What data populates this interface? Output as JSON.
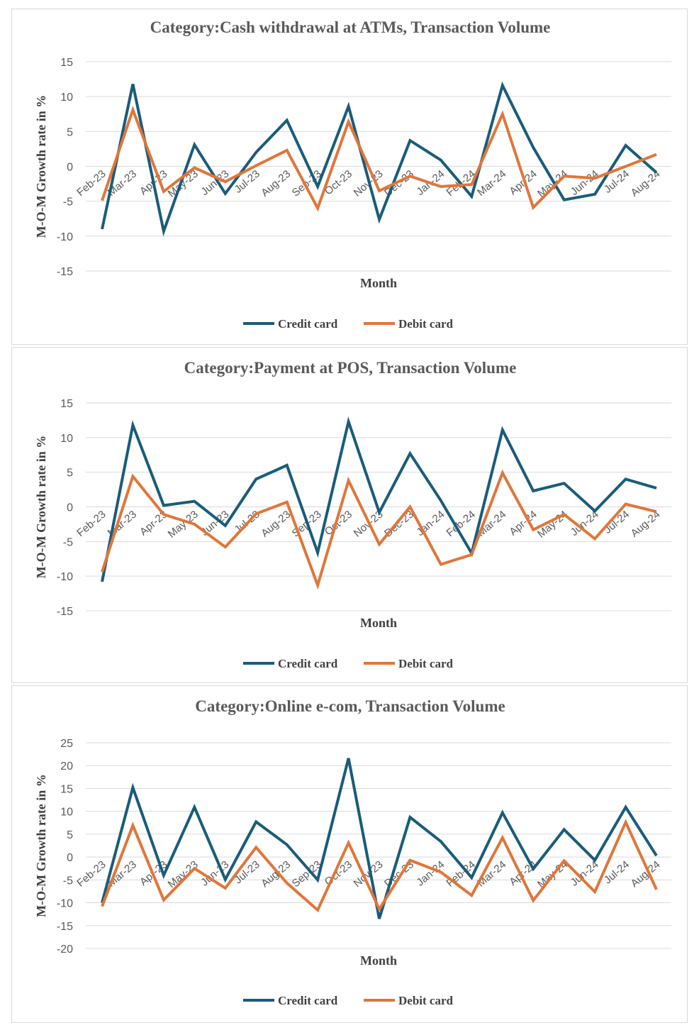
{
  "colors": {
    "credit": "#1a5c7a",
    "debit": "#e0763a"
  },
  "chart_data": [
    {
      "type": "line",
      "title": "Category:Cash withdrawal at ATMs, Transaction Volume",
      "xlabel": "Month",
      "ylabel": "M-O-M Growth rate in %",
      "ylim": [
        -15,
        15
      ],
      "yticks": [
        15,
        10,
        5,
        0,
        -5,
        -10,
        -15
      ],
      "grid": true,
      "legend": "bottom",
      "categories": [
        "Feb-23",
        "Mar-23",
        "Apr-23",
        "May-23",
        "Jun-23",
        "Jul-23",
        "Aug-23",
        "Sep-23",
        "Oct-23",
        "Nov-23",
        "Dec-23",
        "Jan-24",
        "Feb-24",
        "Mar-24",
        "Apr-24",
        "May-24",
        "Jun-24",
        "Jul-24",
        "Aug-24"
      ],
      "series": [
        {
          "name": "Credit card",
          "values": [
            -9.0,
            11.8,
            -9.3,
            3.1,
            -3.9,
            2.0,
            6.6,
            -2.9,
            8.6,
            -7.6,
            3.7,
            0.9,
            -4.3,
            11.6,
            2.7,
            -4.8,
            -4.0,
            3.0,
            -0.9
          ]
        },
        {
          "name": "Debit card",
          "values": [
            -4.9,
            8.1,
            -3.6,
            -0.2,
            -2.2,
            0.1,
            2.3,
            -6.0,
            6.4,
            -3.5,
            -1.4,
            -2.9,
            -2.6,
            7.5,
            -5.9,
            -1.4,
            -1.7,
            0.0,
            1.7
          ]
        }
      ]
    },
    {
      "type": "line",
      "title": "Category:Payment at POS, Transaction Volume",
      "xlabel": "Month",
      "ylabel": "M-O-M Growth rate in %",
      "ylim": [
        -15,
        15
      ],
      "yticks": [
        15,
        10,
        5,
        0,
        -5,
        -10,
        -15
      ],
      "grid": true,
      "legend": "bottom",
      "categories": [
        "Feb-23",
        "Mar-23",
        "Apr-23",
        "May-23",
        "Jun-23",
        "Jul-23",
        "Aug-23",
        "Sep-23",
        "Oct-23",
        "Nov-23",
        "Dec-23",
        "Jan-24",
        "Feb-24",
        "Mar-24",
        "Apr-24",
        "May-24",
        "Jun-24",
        "Jul-24",
        "Aug-24"
      ],
      "series": [
        {
          "name": "Credit card",
          "values": [
            -10.8,
            11.8,
            0.2,
            0.8,
            -2.7,
            4.0,
            6.0,
            -6.6,
            12.3,
            -0.8,
            7.7,
            0.9,
            -6.7,
            11.1,
            2.3,
            3.4,
            -0.6,
            4.0,
            2.7
          ]
        },
        {
          "name": "Debit card",
          "values": [
            -9.4,
            4.4,
            -1.1,
            -2.5,
            -5.8,
            -1.0,
            0.7,
            -11.3,
            3.8,
            -5.4,
            0.0,
            -8.3,
            -6.9,
            4.9,
            -3.3,
            -1.1,
            -4.6,
            0.4,
            -0.7
          ]
        }
      ]
    },
    {
      "type": "line",
      "title": "Category:Online e-com, Transaction Volume",
      "xlabel": "Month",
      "ylabel": "M-O-M Growth rate in %",
      "ylim": [
        -20,
        25
      ],
      "yticks": [
        25,
        20,
        15,
        10,
        5,
        0,
        -5,
        -10,
        -15,
        -20
      ],
      "grid": true,
      "legend": "bottom",
      "categories": [
        "Feb-23",
        "Mar-23",
        "Apr-23",
        "May-23",
        "Jun-23",
        "Jul-23",
        "Aug-23",
        "Sep-23",
        "Oct-23",
        "Nov-23",
        "Dec-23",
        "Jan-24",
        "Feb-24",
        "Mar-24",
        "Apr-24",
        "May-24",
        "Jun-24",
        "Jul-24",
        "Aug-24"
      ],
      "series": [
        {
          "name": "Credit card",
          "values": [
            -10.0,
            15.2,
            -4.0,
            10.9,
            -4.9,
            7.7,
            2.7,
            -5.0,
            21.6,
            -13.5,
            8.7,
            3.4,
            -4.5,
            9.7,
            -2.6,
            6.0,
            -0.7,
            10.9,
            0.3
          ]
        },
        {
          "name": "Debit card",
          "values": [
            -10.8,
            6.9,
            -9.4,
            -2.5,
            -6.8,
            2.1,
            -5.7,
            -11.6,
            3.1,
            -11.4,
            -0.7,
            -3.3,
            -8.4,
            4.2,
            -9.5,
            -0.8,
            -7.6,
            7.6,
            -7.1
          ]
        }
      ]
    }
  ]
}
